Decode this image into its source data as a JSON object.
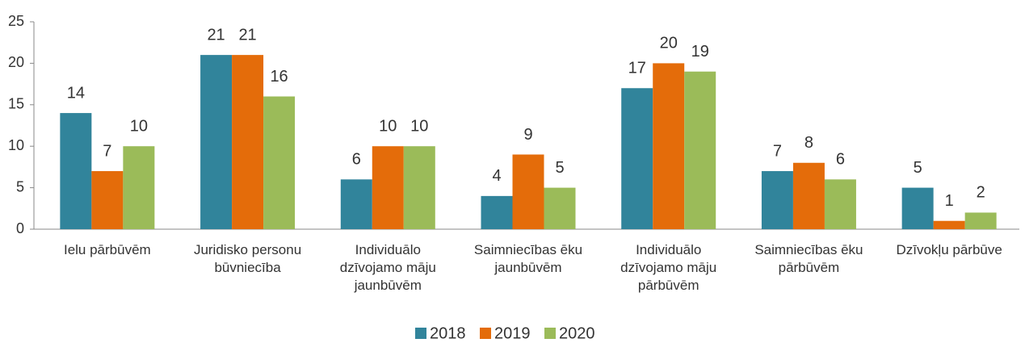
{
  "chart_data": {
    "type": "bar",
    "categories": [
      "Ielu pārbūvēm",
      "Juridisko personu būvniecība",
      "Individuālo dzīvojamo māju jaunbūvēm",
      "Saimniecības ēku jaunbūvēm",
      "Individuālo dzīvojamo māju pārbūvēm",
      "Saimniecības ēku pārbūvēm",
      "Dzīvokļu pārbūve"
    ],
    "series": [
      {
        "name": "2018",
        "color": "#31849b",
        "values": [
          14,
          21,
          6,
          4,
          17,
          7,
          5
        ]
      },
      {
        "name": "2019",
        "color": "#e46c0a",
        "values": [
          7,
          21,
          10,
          9,
          20,
          8,
          1
        ]
      },
      {
        "name": "2020",
        "color": "#9bbb59",
        "values": [
          10,
          16,
          10,
          5,
          19,
          6,
          2
        ]
      }
    ],
    "ylim": [
      0,
      25
    ],
    "yticks": [
      0,
      5,
      10,
      15,
      20,
      25
    ],
    "grid": false,
    "legend": "bottom"
  }
}
